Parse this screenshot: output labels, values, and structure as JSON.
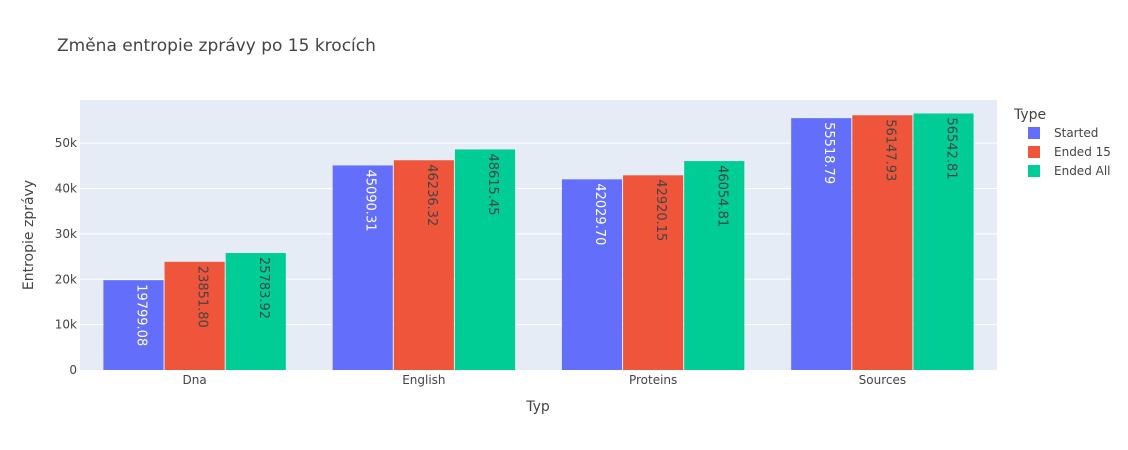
{
  "chart_data": {
    "type": "bar",
    "title": "Změna entropie zprávy po 15 krocích",
    "xlabel": "Typ",
    "ylabel": "Entropie zprávy",
    "categories": [
      "Dna",
      "English",
      "Proteins",
      "Sources"
    ],
    "series": [
      {
        "name": "Started",
        "color": "#636efa",
        "label_color": "#ffffff",
        "values": [
          19799.08,
          45090.31,
          42029.7,
          55518.79
        ],
        "labels": [
          "19799.08",
          "45090.31",
          "42029.70",
          "55518.79"
        ]
      },
      {
        "name": "Ended 15",
        "color": "#ef553b",
        "label_color": "#444444",
        "values": [
          23851.8,
          46236.32,
          42920.15,
          56147.93
        ],
        "labels": [
          "23851.80",
          "46236.32",
          "42920.15",
          "56147.93"
        ]
      },
      {
        "name": "Ended All",
        "color": "#00cc96",
        "label_color": "#444444",
        "values": [
          25783.92,
          48615.45,
          46054.81,
          56542.81
        ],
        "labels": [
          "25783.92",
          "48615.45",
          "46054.81",
          "56542.81"
        ]
      }
    ],
    "ylim": [
      0,
      59518.7
    ],
    "yticks": [
      0,
      10000,
      20000,
      30000,
      40000,
      50000
    ],
    "ytick_labels": [
      "0",
      "10k",
      "20k",
      "30k",
      "40k",
      "50k"
    ],
    "legend_title": "Type",
    "legend_position": "top-right",
    "grid": true,
    "plot_background": "#e5ecf6"
  }
}
